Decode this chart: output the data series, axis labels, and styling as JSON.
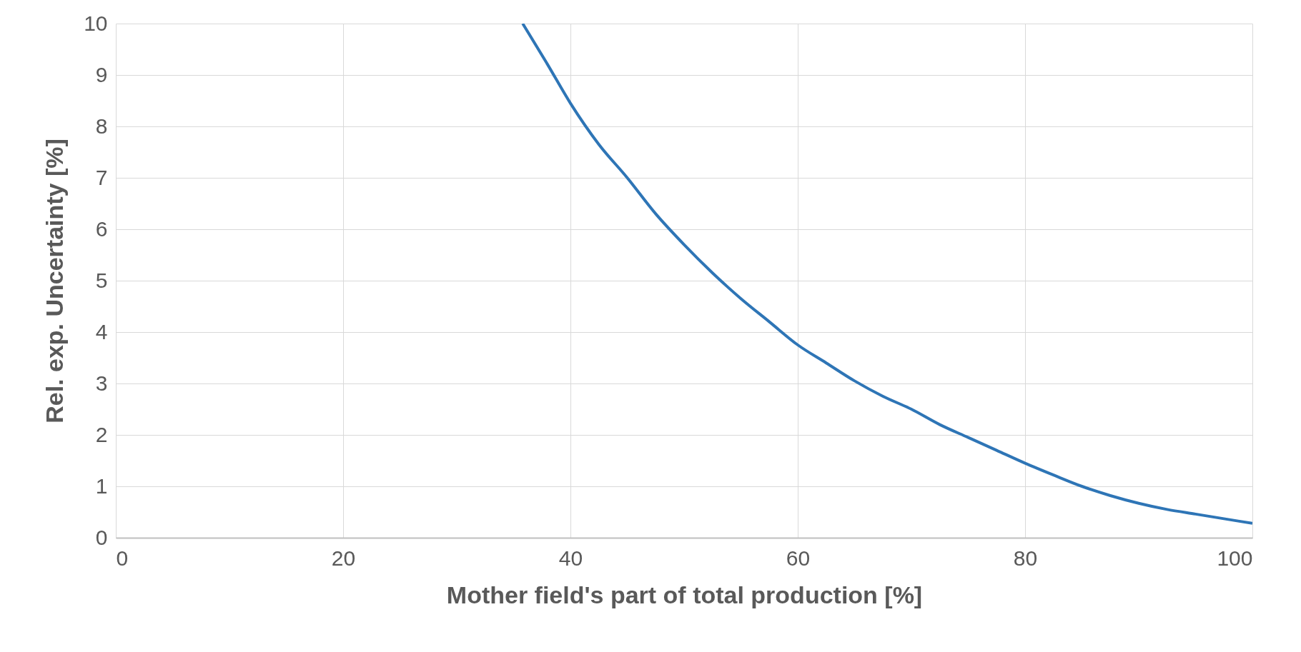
{
  "chart_data": {
    "type": "line",
    "xlabel": "Mother field's part of total production  [%]",
    "ylabel": "Rel. exp. Uncertainty  [%]",
    "x": [
      35.8,
      38,
      40,
      42.5,
      45,
      47.5,
      50,
      52.5,
      55,
      57.5,
      60,
      62.5,
      65,
      67.5,
      70,
      72.5,
      75,
      77.5,
      80,
      82.5,
      85,
      87.5,
      90,
      92.5,
      95,
      97.5,
      100
    ],
    "series": [
      {
        "color": "#2e75b6",
        "values": [
          10,
          9.2,
          8.45,
          7.65,
          7.0,
          6.3,
          5.7,
          5.15,
          4.65,
          4.2,
          3.75,
          3.4,
          3.05,
          2.75,
          2.5,
          2.2,
          1.95,
          1.7,
          1.45,
          1.22,
          1.0,
          0.82,
          0.67,
          0.55,
          0.46,
          0.37,
          0.28
        ]
      }
    ],
    "xlim": [
      0,
      100
    ],
    "xticks": [
      0,
      20,
      40,
      60,
      80,
      100
    ],
    "ylim": [
      0,
      10
    ],
    "yticks": [
      0,
      1,
      2,
      3,
      4,
      5,
      6,
      7,
      8,
      9,
      10
    ],
    "grid": true,
    "legend": false
  }
}
